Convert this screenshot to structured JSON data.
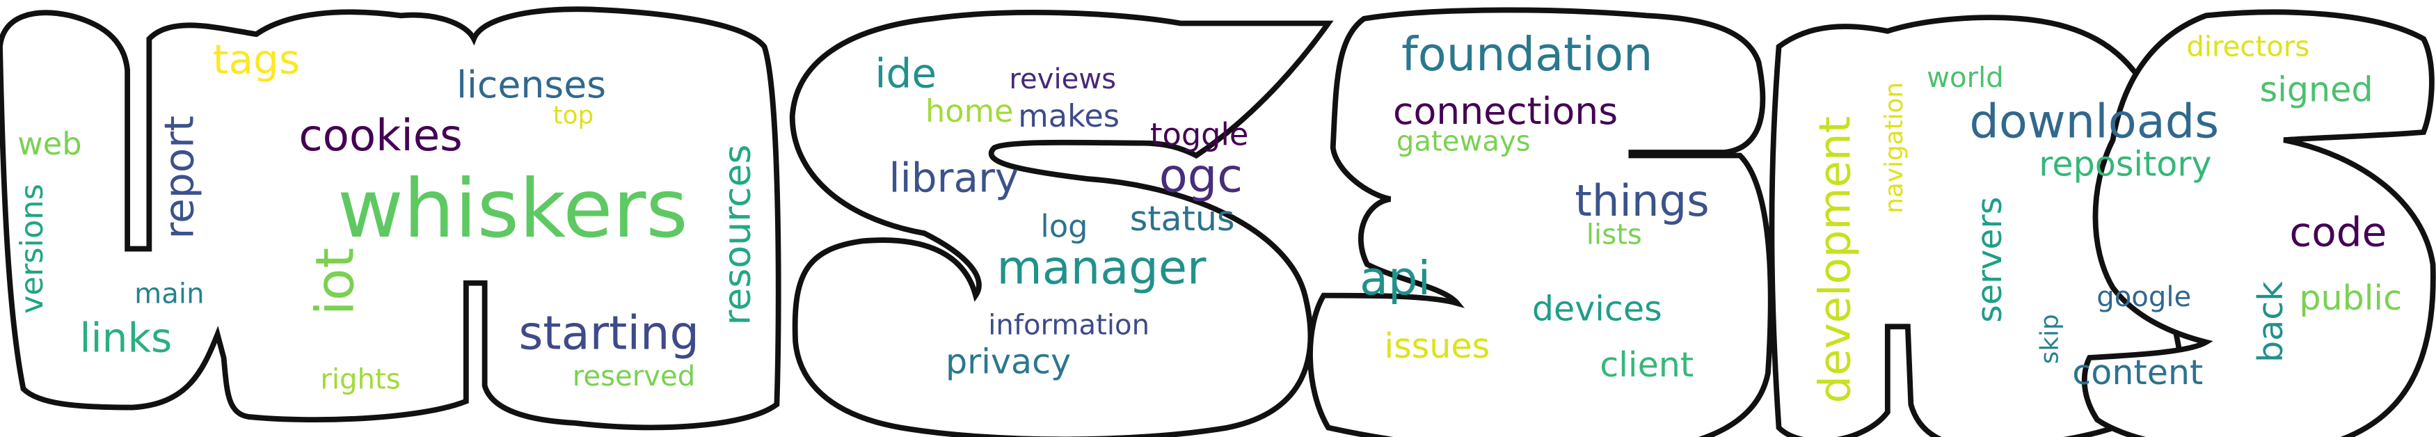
{
  "words": [
    {
      "text": "whiskers",
      "color": "#5ec962"
    },
    {
      "text": "iot",
      "color": "#7ad151"
    },
    {
      "text": "manager",
      "color": "#21918c"
    },
    {
      "text": "foundation",
      "color": "#2a788e"
    },
    {
      "text": "downloads",
      "color": "#31688e"
    },
    {
      "text": "starting",
      "color": "#3e4a89"
    },
    {
      "text": "development",
      "color": "#c8e020"
    },
    {
      "text": "resources",
      "color": "#22a884"
    },
    {
      "text": "report",
      "color": "#3b528b"
    },
    {
      "text": "things",
      "color": "#3b528b"
    },
    {
      "text": "ogc",
      "color": "#472d7b"
    },
    {
      "text": "cookies",
      "color": "#440154"
    },
    {
      "text": "connections",
      "color": "#440154"
    },
    {
      "text": "api",
      "color": "#21918c"
    },
    {
      "text": "library",
      "color": "#3b528b"
    },
    {
      "text": "licenses",
      "color": "#31688e"
    },
    {
      "text": "tags",
      "color": "#fde725"
    },
    {
      "text": "code",
      "color": "#440154"
    },
    {
      "text": "links",
      "color": "#29af7f"
    },
    {
      "text": "privacy",
      "color": "#2a788e"
    },
    {
      "text": "ide",
      "color": "#21918c"
    },
    {
      "text": "repository",
      "color": "#35b779"
    },
    {
      "text": "servers",
      "color": "#1f9e89"
    },
    {
      "text": "devices",
      "color": "#1f9e89"
    },
    {
      "text": "client",
      "color": "#35b779"
    },
    {
      "text": "issues",
      "color": "#dde318"
    },
    {
      "text": "status",
      "color": "#2c728e"
    },
    {
      "text": "public",
      "color": "#7ad151"
    },
    {
      "text": "signed",
      "color": "#4ac16d"
    },
    {
      "text": "back",
      "color": "#21918c"
    },
    {
      "text": "content",
      "color": "#2c728e"
    },
    {
      "text": "makes",
      "color": "#3e4a89"
    },
    {
      "text": "versions",
      "color": "#20a486"
    },
    {
      "text": "web",
      "color": "#7ad151"
    },
    {
      "text": "log",
      "color": "#2c728e"
    },
    {
      "text": "toggle",
      "color": "#440154"
    },
    {
      "text": "reviews",
      "color": "#482878"
    },
    {
      "text": "home",
      "color": "#a0da39"
    },
    {
      "text": "information",
      "color": "#3e4a89"
    },
    {
      "text": "main",
      "color": "#26828e"
    },
    {
      "text": "rights",
      "color": "#a0da39"
    },
    {
      "text": "reserved",
      "color": "#7ad151"
    },
    {
      "text": "gateways",
      "color": "#7ad151"
    },
    {
      "text": "lists",
      "color": "#7ad151"
    },
    {
      "text": "navigation",
      "color": "#dde318"
    },
    {
      "text": "world",
      "color": "#4ac16d"
    },
    {
      "text": "directors",
      "color": "#dde318"
    },
    {
      "text": "google",
      "color": "#31688e"
    },
    {
      "text": "skip",
      "color": "#26828e"
    },
    {
      "text": "top",
      "color": "#dde318"
    }
  ]
}
